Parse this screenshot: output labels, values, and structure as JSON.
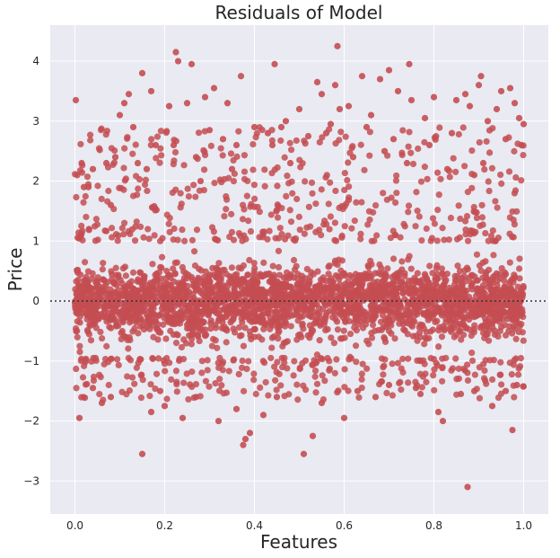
{
  "colors": {
    "plot_bg": "#e9eaf2",
    "grid": "#ffffff",
    "points": "#c44e52",
    "zero_line": "#333333"
  },
  "chart_data": {
    "type": "scatter",
    "title": "Residuals of Model",
    "xlabel": "Features",
    "ylabel": "Price",
    "xlim": [
      -0.055,
      1.055
    ],
    "ylim": [
      -3.55,
      4.6
    ],
    "xticks": [
      0.0,
      0.2,
      0.4,
      0.6,
      0.8,
      1.0
    ],
    "xtick_labels": [
      "0.0",
      "0.2",
      "0.4",
      "0.6",
      "0.8",
      "1.0"
    ],
    "yticks": [
      -3,
      -2,
      -1,
      0,
      1,
      2,
      3,
      4
    ],
    "ytick_labels": [
      "−3",
      "−2",
      "−1",
      "0",
      "1",
      "2",
      "3",
      "4"
    ],
    "grid": true,
    "reference_line": {
      "y": 0,
      "style": "dotted"
    },
    "points": [
      [
        0.002,
        3.35
      ],
      [
        0.005,
        2.1
      ],
      [
        0.01,
        -1.95
      ],
      [
        0.015,
        2.3
      ],
      [
        0.03,
        1.9
      ],
      [
        0.04,
        -1.45
      ],
      [
        0.06,
        -1.7
      ],
      [
        0.07,
        2.3
      ],
      [
        0.08,
        1.6
      ],
      [
        0.1,
        3.1
      ],
      [
        0.11,
        3.3
      ],
      [
        0.12,
        3.45
      ],
      [
        0.14,
        2.3
      ],
      [
        0.15,
        3.8
      ],
      [
        0.15,
        -2.55
      ],
      [
        0.16,
        2.2
      ],
      [
        0.17,
        3.5
      ],
      [
        0.17,
        -1.85
      ],
      [
        0.18,
        2.6
      ],
      [
        0.2,
        -1.75
      ],
      [
        0.21,
        3.25
      ],
      [
        0.225,
        4.15
      ],
      [
        0.23,
        4.0
      ],
      [
        0.24,
        -1.95
      ],
      [
        0.25,
        3.3
      ],
      [
        0.26,
        3.95
      ],
      [
        0.27,
        2.4
      ],
      [
        0.28,
        2.0
      ],
      [
        0.29,
        3.4
      ],
      [
        0.31,
        3.55
      ],
      [
        0.32,
        -2.0
      ],
      [
        0.33,
        2.7
      ],
      [
        0.34,
        3.3
      ],
      [
        0.35,
        2.2
      ],
      [
        0.36,
        2.6
      ],
      [
        0.37,
        3.75
      ],
      [
        0.375,
        -2.4
      ],
      [
        0.38,
        -2.3
      ],
      [
        0.39,
        -2.2
      ],
      [
        0.4,
        2.9
      ],
      [
        0.42,
        -1.9
      ],
      [
        0.43,
        2.8
      ],
      [
        0.445,
        3.95
      ],
      [
        0.46,
        2.9
      ],
      [
        0.48,
        2.3
      ],
      [
        0.5,
        3.2
      ],
      [
        0.51,
        -2.55
      ],
      [
        0.52,
        2.75
      ],
      [
        0.53,
        -2.25
      ],
      [
        0.54,
        3.65
      ],
      [
        0.55,
        3.45
      ],
      [
        0.56,
        2.8
      ],
      [
        0.58,
        3.6
      ],
      [
        0.585,
        4.25
      ],
      [
        0.59,
        3.2
      ],
      [
        0.6,
        -1.95
      ],
      [
        0.61,
        3.25
      ],
      [
        0.62,
        2.4
      ],
      [
        0.64,
        3.75
      ],
      [
        0.65,
        2.9
      ],
      [
        0.67,
        -1.6
      ],
      [
        0.68,
        3.7
      ],
      [
        0.69,
        2.5
      ],
      [
        0.7,
        3.85
      ],
      [
        0.72,
        3.5
      ],
      [
        0.74,
        2.3
      ],
      [
        0.745,
        3.95
      ],
      [
        0.75,
        3.35
      ],
      [
        0.77,
        -1.55
      ],
      [
        0.78,
        3.05
      ],
      [
        0.8,
        3.4
      ],
      [
        0.81,
        -1.85
      ],
      [
        0.82,
        -2.0
      ],
      [
        0.83,
        2.2
      ],
      [
        0.84,
        2.8
      ],
      [
        0.85,
        3.35
      ],
      [
        0.86,
        -1.55
      ],
      [
        0.87,
        3.45
      ],
      [
        0.875,
        -3.1
      ],
      [
        0.88,
        3.25
      ],
      [
        0.89,
        2.1
      ],
      [
        0.9,
        3.6
      ],
      [
        0.905,
        3.75
      ],
      [
        0.92,
        3.0
      ],
      [
        0.93,
        -1.75
      ],
      [
        0.94,
        3.2
      ],
      [
        0.95,
        3.5
      ],
      [
        0.96,
        2.7
      ],
      [
        0.97,
        3.55
      ],
      [
        0.975,
        -2.15
      ],
      [
        0.98,
        3.3
      ],
      [
        0.99,
        3.05
      ],
      [
        0.995,
        2.6
      ],
      [
        1.0,
        2.95
      ],
      [
        0.985,
        -1.4
      ],
      [
        0.02,
        1.9
      ],
      [
        0.04,
        2.2
      ],
      [
        0.09,
        2.4
      ],
      [
        0.13,
        2.9
      ],
      [
        0.22,
        2.6
      ],
      [
        0.3,
        2.85
      ],
      [
        0.44,
        2.6
      ],
      [
        0.47,
        3.0
      ],
      [
        0.57,
        2.95
      ],
      [
        0.66,
        3.1
      ],
      [
        0.71,
        2.7
      ],
      [
        0.79,
        2.6
      ],
      [
        0.91,
        2.3
      ],
      [
        0.08,
        -1.6
      ],
      [
        0.19,
        -1.5
      ],
      [
        0.27,
        -1.6
      ],
      [
        0.36,
        -1.8
      ],
      [
        0.45,
        -1.6
      ],
      [
        0.55,
        -1.7
      ],
      [
        0.63,
        -1.5
      ],
      [
        0.7,
        -1.4
      ],
      [
        0.76,
        -1.45
      ],
      [
        0.89,
        -1.5
      ],
      [
        0.96,
        -1.5
      ]
    ]
  }
}
